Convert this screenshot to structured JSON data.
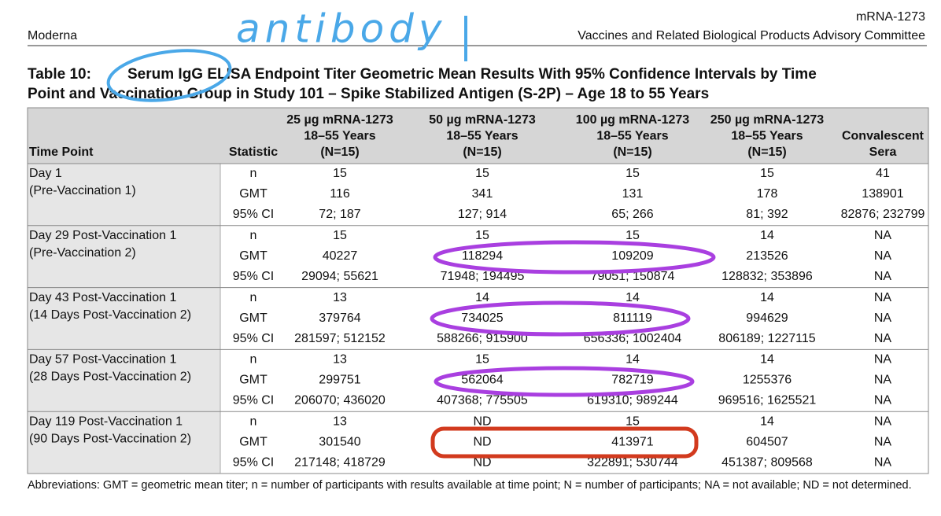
{
  "header": {
    "left": "Moderna",
    "right_top": "mRNA-1273",
    "right_bottom": "Vaccines and Related Biological Products Advisory Committee"
  },
  "annotation": "antibody",
  "caption": {
    "label": "Table 10:",
    "line1": "Serum IgG ELISA Endpoint Titer Geometric Mean Results With 95% Confidence Intervals by Time",
    "line2": "Point and Vaccination Group in Study 101 – Spike Stabilized Antigen (S-2P) – Age 18 to 55 Years"
  },
  "table": {
    "columns": [
      [
        "Time Point"
      ],
      [
        "Statistic"
      ],
      [
        "25 µg mRNA-1273",
        "18–55 Years",
        "(N=15)"
      ],
      [
        "50 µg mRNA-1273",
        "18–55 Years",
        "(N=15)"
      ],
      [
        "100 µg mRNA-1273",
        "18–55 Years",
        "(N=15)"
      ],
      [
        "250 µg mRNA-1273",
        "18–55 Years",
        "(N=15)"
      ],
      [
        "Convalescent",
        "Sera"
      ]
    ],
    "rows": [
      {
        "time_point": [
          "Day 1",
          "(Pre-Vaccination 1)"
        ],
        "stats": [
          [
            "n",
            "15",
            "15",
            "15",
            "15",
            "41"
          ],
          [
            "GMT",
            "116",
            "341",
            "131",
            "178",
            "138901"
          ],
          [
            "95% CI",
            "72; 187",
            "127; 914",
            "65; 266",
            "81; 392",
            "82876; 232799"
          ]
        ]
      },
      {
        "time_point": [
          "Day 29 Post-Vaccination 1",
          "(Pre-Vaccination 2)"
        ],
        "stats": [
          [
            "n",
            "15",
            "15",
            "15",
            "14",
            "NA"
          ],
          [
            "GMT",
            "40227",
            "118294",
            "109209",
            "213526",
            "NA"
          ],
          [
            "95% CI",
            "29094; 55621",
            "71948; 194495",
            "79051; 150874",
            "128832; 353896",
            "NA"
          ]
        ]
      },
      {
        "time_point": [
          "Day 43 Post-Vaccination 1",
          "(14 Days Post-Vaccination 2)"
        ],
        "stats": [
          [
            "n",
            "13",
            "14",
            "14",
            "14",
            "NA"
          ],
          [
            "GMT",
            "379764",
            "734025",
            "811119",
            "994629",
            "NA"
          ],
          [
            "95% CI",
            "281597; 512152",
            "588266; 915900",
            "656336; 1002404",
            "806189; 1227115",
            "NA"
          ]
        ]
      },
      {
        "time_point": [
          "Day 57 Post-Vaccination 1",
          "(28 Days Post-Vaccination 2)"
        ],
        "stats": [
          [
            "n",
            "13",
            "15",
            "14",
            "14",
            "NA"
          ],
          [
            "GMT",
            "299751",
            "562064",
            "782719",
            "1255376",
            "NA"
          ],
          [
            "95% CI",
            "206070; 436020",
            "407368; 775505",
            "619310; 989244",
            "969516; 1625521",
            "NA"
          ]
        ]
      },
      {
        "time_point": [
          "Day 119 Post-Vaccination 1",
          "(90 Days Post-Vaccination 2)"
        ],
        "stats": [
          [
            "n",
            "13",
            "ND",
            "15",
            "14",
            "NA"
          ],
          [
            "GMT",
            "301540",
            "ND",
            "413971",
            "604507",
            "NA"
          ],
          [
            "95% CI",
            "217148; 418729",
            "ND",
            "322891; 530744",
            "451387; 809568",
            "NA"
          ]
        ]
      }
    ]
  },
  "footnote": "Abbreviations: GMT = geometric mean titer; n = number of participants with results available at time point; N = number of participants; NA = not available; ND = not determined."
}
